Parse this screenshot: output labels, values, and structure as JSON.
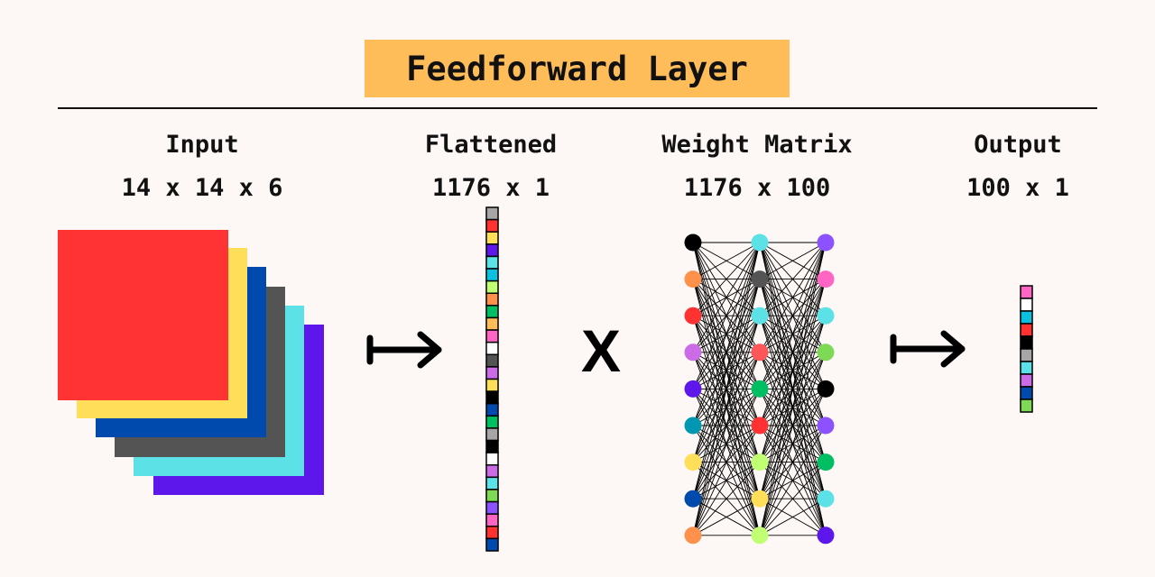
{
  "title": "Feedforward Layer",
  "sections": {
    "input": {
      "label": "Input",
      "dims": "14 x 14 x 6"
    },
    "flattened": {
      "label": "Flattened",
      "dims": "1176 x 1"
    },
    "weights": {
      "label": "Weight Matrix",
      "dims": "1176 x 100"
    },
    "output": {
      "label": "Output",
      "dims": "100 x 1"
    }
  },
  "operator": "X",
  "colors": {
    "background": "#fdf8f5",
    "title_bg": "#ffbd5a",
    "input_layers": [
      "#ff3333",
      "#ffde59",
      "#004aad",
      "#545454",
      "#5ce1e6",
      "#5e17eb"
    ],
    "flattened_cells": [
      "#a6a6a6",
      "#ff3131",
      "#ffde59",
      "#5e17eb",
      "#5ce1e6",
      "#0cc0df",
      "#c1ff72",
      "#ff914d",
      "#00bf63",
      "#ffbd59",
      "#ff66c4",
      "#ffffff",
      "#545454",
      "#cb6ce6",
      "#ffde59",
      "#000000",
      "#004aad",
      "#00bf63",
      "#a6a6a6",
      "#000000",
      "#ffffff",
      "#cb6ce6",
      "#5ce1e6",
      "#7ed957",
      "#8c52ff",
      "#ff66c4",
      "#ff3131",
      "#004aad"
    ],
    "output_cells": [
      "#ff66c4",
      "#ffffff",
      "#0cc0df",
      "#ff3131",
      "#000000",
      "#a6a6a6",
      "#5ce1e6",
      "#cb6ce6",
      "#004aad",
      "#7ed957"
    ],
    "network_layers": [
      [
        "#000000",
        "#ff914d",
        "#ff3131",
        "#cb6ce6",
        "#5e17eb",
        "#0097b2",
        "#ffde59",
        "#004aad",
        "#ff914d"
      ],
      [
        "#5ce1e6",
        "#545454",
        "#5ce1e6",
        "#ff5757",
        "#00bf63",
        "#ff3131",
        "#c1ff72",
        "#ffde59",
        "#c1ff72"
      ],
      [
        "#8c52ff",
        "#ff66c4",
        "#5ce1e6",
        "#7ed957",
        "#000000",
        "#8c52ff",
        "#00bf63",
        "#5ce1e6",
        "#5e17eb"
      ]
    ]
  }
}
